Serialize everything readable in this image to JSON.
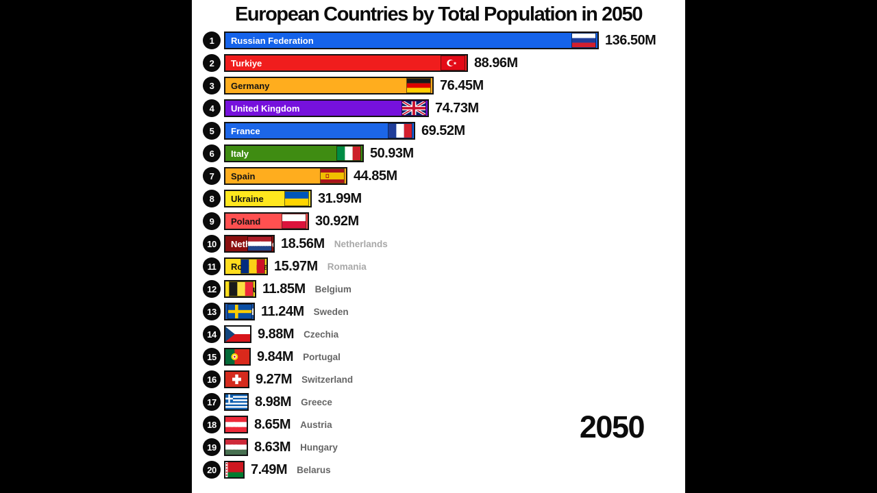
{
  "title": "European Countries by Total Population in 2050",
  "year_label": "2050",
  "chart_data": {
    "type": "bar",
    "orientation": "horizontal",
    "title": "European Countries by Total Population in 2050",
    "year": "2050",
    "unit": "millions of people",
    "value_suffix": "M",
    "xlim": [
      0,
      136.5
    ],
    "grid": false,
    "legend": false,
    "categories": [
      "Russian Federation",
      "Turkiye",
      "Germany",
      "United Kingdom",
      "France",
      "Italy",
      "Spain",
      "Ukraine",
      "Poland",
      "Netherlands",
      "Romania",
      "Belgium",
      "Sweden",
      "Czechia",
      "Portugal",
      "Switzerland",
      "Greece",
      "Austria",
      "Hungary",
      "Belarus"
    ],
    "values": [
      136.5,
      88.96,
      76.45,
      74.73,
      69.52,
      50.93,
      44.85,
      31.99,
      30.92,
      18.56,
      15.97,
      11.85,
      11.24,
      9.88,
      9.84,
      9.27,
      8.98,
      8.65,
      8.63,
      7.49
    ]
  },
  "rows": [
    {
      "rank": "1",
      "name": "Russian Federation",
      "value": 136.5,
      "value_label": "136.50M",
      "flag": "russia",
      "bar_color": "#1563ea",
      "name_color": "#ffffff",
      "ghost": "",
      "ghost_color": ""
    },
    {
      "rank": "2",
      "name": "Turkiye",
      "value": 88.96,
      "value_label": "88.96M",
      "flag": "turkiye",
      "bar_color": "#f01d1d",
      "name_color": "#ffffff",
      "ghost": "",
      "ghost_color": ""
    },
    {
      "rank": "3",
      "name": "Germany",
      "value": 76.45,
      "value_label": "76.45M",
      "flag": "germany",
      "bar_color": "#ffad1e",
      "name_color": "#131313",
      "ghost": "",
      "ghost_color": ""
    },
    {
      "rank": "4",
      "name": "United Kingdom",
      "value": 74.73,
      "value_label": "74.73M",
      "flag": "uk",
      "bar_color": "#7611dc",
      "name_color": "#ffffff",
      "ghost": "",
      "ghost_color": ""
    },
    {
      "rank": "5",
      "name": "France",
      "value": 69.52,
      "value_label": "69.52M",
      "flag": "france",
      "bar_color": "#1c66e8",
      "name_color": "#ffffff",
      "ghost": "",
      "ghost_color": ""
    },
    {
      "rank": "6",
      "name": "Italy",
      "value": 50.93,
      "value_label": "50.93M",
      "flag": "italy",
      "bar_color": "#3f8c12",
      "name_color": "#ffffff",
      "ghost": "",
      "ghost_color": ""
    },
    {
      "rank": "7",
      "name": "Spain",
      "value": 44.85,
      "value_label": "44.85M",
      "flag": "spain",
      "bar_color": "#ffad1e",
      "name_color": "#131313",
      "ghost": "",
      "ghost_color": ""
    },
    {
      "rank": "8",
      "name": "Ukraine",
      "value": 31.99,
      "value_label": "31.99M",
      "flag": "ukraine",
      "bar_color": "#ffe71e",
      "name_color": "#131313",
      "ghost": "",
      "ghost_color": ""
    },
    {
      "rank": "9",
      "name": "Poland",
      "value": 30.92,
      "value_label": "30.92M",
      "flag": "poland",
      "bar_color": "#ff5050",
      "name_color": "#131313",
      "ghost": "",
      "ghost_color": ""
    },
    {
      "rank": "10",
      "name": "Netherlands",
      "value": 18.56,
      "value_label": "18.56M",
      "flag": "netherlands",
      "bar_color": "#8b0f0f",
      "name_color": "#ffffff",
      "ghost": "Netherlands",
      "ghost_color": "#a8a8a8"
    },
    {
      "rank": "11",
      "name": "Romania",
      "value": 15.97,
      "value_label": "15.97M",
      "flag": "romania",
      "bar_color": "#ffdd1e",
      "name_color": "#131313",
      "ghost": "Romania",
      "ghost_color": "#a8a8a8"
    },
    {
      "rank": "12",
      "name": "Belgium",
      "value": 11.85,
      "value_label": "11.85M",
      "flag": "belgium",
      "bar_color": "#ffdd1e",
      "name_color": "#131313",
      "ghost": "Belgium",
      "ghost_color": "#666666"
    },
    {
      "rank": "13",
      "name": "Sweden",
      "value": 11.24,
      "value_label": "11.24M",
      "flag": "sweden",
      "bar_color": "#1d56ac",
      "name_color": "#ffffff",
      "ghost": "Sweden",
      "ghost_color": "#666666"
    },
    {
      "rank": "14",
      "name": "Czechia",
      "value": 9.88,
      "value_label": "9.88M",
      "flag": "czechia",
      "bar_color": "#ffffff",
      "name_color": "#131313",
      "ghost": "Czechia",
      "ghost_color": "#666666"
    },
    {
      "rank": "15",
      "name": "Portugal",
      "value": 9.84,
      "value_label": "9.84M",
      "flag": "portugal",
      "bar_color": "#046a38",
      "name_color": "#ffffff",
      "ghost": "Portugal",
      "ghost_color": "#666666"
    },
    {
      "rank": "16",
      "name": "Switzerland",
      "value": 9.27,
      "value_label": "9.27M",
      "flag": "switzerland",
      "bar_color": "#d52b1e",
      "name_color": "#ffffff",
      "ghost": "Switzerland",
      "ghost_color": "#666666"
    },
    {
      "rank": "17",
      "name": "Greece",
      "value": 8.98,
      "value_label": "8.98M",
      "flag": "greece",
      "bar_color": "#0d5eaf",
      "name_color": "#ffffff",
      "ghost": "Greece",
      "ghost_color": "#666666"
    },
    {
      "rank": "18",
      "name": "Austria",
      "value": 8.65,
      "value_label": "8.65M",
      "flag": "austria",
      "bar_color": "#ed2939",
      "name_color": "#ffffff",
      "ghost": "Austria",
      "ghost_color": "#666666"
    },
    {
      "rank": "19",
      "name": "Hungary",
      "value": 8.63,
      "value_label": "8.63M",
      "flag": "hungary",
      "bar_color": "#ce2939",
      "name_color": "#ffffff",
      "ghost": "Hungary",
      "ghost_color": "#666666"
    },
    {
      "rank": "20",
      "name": "Belarus",
      "value": 7.49,
      "value_label": "7.49M",
      "flag": "belarus",
      "bar_color": "#ce1720",
      "name_color": "#ffffff",
      "ghost": "Belarus",
      "ghost_color": "#666666"
    }
  ]
}
